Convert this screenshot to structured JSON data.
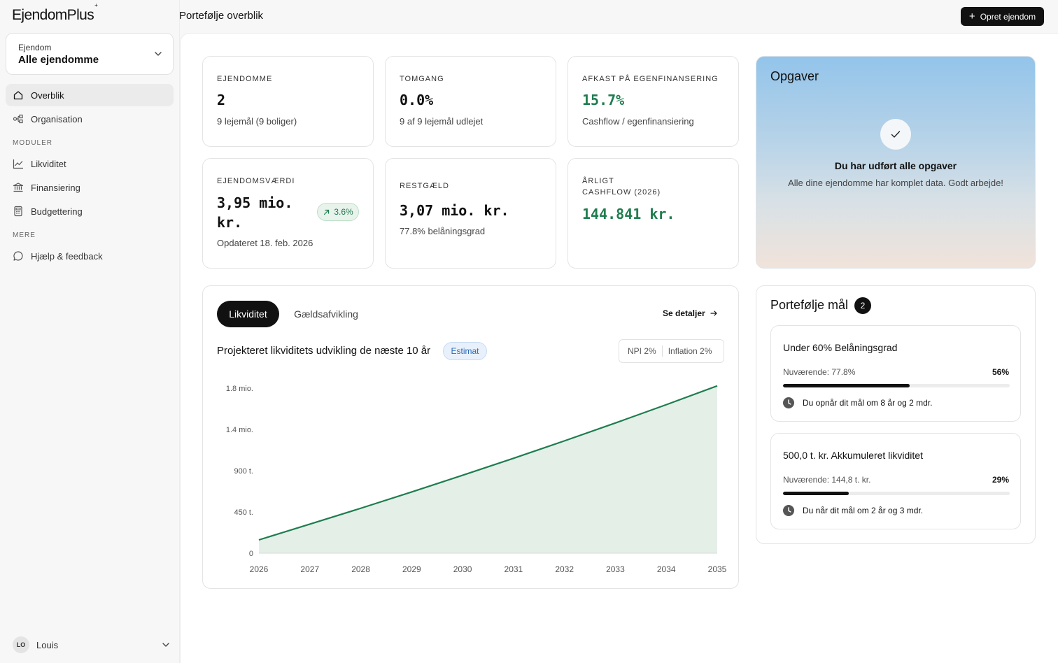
{
  "app": {
    "name": "EjendomPlus"
  },
  "sidebar": {
    "selector": {
      "label": "Ejendom",
      "value": "Alle ejendomme"
    },
    "items": [
      {
        "label": "Overblik",
        "icon": "home-icon"
      },
      {
        "label": "Organisation",
        "icon": "org-icon"
      }
    ],
    "section_moduler": "MODULER",
    "moduler": [
      {
        "label": "Likviditet",
        "icon": "line-chart-icon"
      },
      {
        "label": "Finansiering",
        "icon": "bank-icon"
      },
      {
        "label": "Budgettering",
        "icon": "calculator-icon"
      }
    ],
    "section_mere": "MERE",
    "mere": [
      {
        "label": "Hjælp & feedback",
        "icon": "chat-icon"
      }
    ],
    "user": {
      "initials": "LO",
      "name": "Louis"
    }
  },
  "header": {
    "title": "Portefølje overblik",
    "create_button": "Opret ejendom"
  },
  "kpis": {
    "ejendomme": {
      "label": "EJENDOMME",
      "value": "2",
      "sub": "9 lejemål (9 boliger)"
    },
    "tomgang": {
      "label": "TOMGANG",
      "value": "0.0%",
      "sub": "9 af 9 lejemål udlejet"
    },
    "afkast": {
      "label": "AFKAST PÅ EGENFINANSERING",
      "value": "15.7%",
      "sub": "Cashflow / egenfinansiering"
    },
    "vaerdi": {
      "label": "EJENDOMSVÆRDI",
      "value_line1": "3,95 mio.",
      "value_line2": "kr.",
      "badge": "3.6%",
      "sub": "Opdateret 18. feb. 2026"
    },
    "restgaeld": {
      "label": "RESTGÆLD",
      "value": "3,07 mio. kr.",
      "sub": "77.8% belåningsgrad"
    },
    "cashflow": {
      "label_line1": "ÅRLIGT",
      "label_line2": "CASHFLOW (2026)",
      "value": "144.841 kr."
    }
  },
  "tasks": {
    "title": "Opgaver",
    "headline": "Du har udført alle opgaver",
    "subtitle": "Alle dine ejendomme har komplet data. Godt arbejde!"
  },
  "chart_panel": {
    "tabs": [
      "Likviditet",
      "Gældsafvikling"
    ],
    "details_link": "Se detaljer",
    "title": "Projekteret likviditets udvikling de næste 10 år",
    "badge": "Estimat",
    "params": [
      "NPI 2%",
      "Inflation 2%"
    ]
  },
  "chart_data": {
    "type": "area",
    "x": [
      "2026",
      "2027",
      "2028",
      "2029",
      "2030",
      "2031",
      "2032",
      "2033",
      "2034",
      "2035"
    ],
    "series": [
      {
        "values": [
          145000,
          317000,
          490000,
          668000,
          850000,
          1035000,
          1225000,
          1420000,
          1620000,
          1825000
        ]
      }
    ],
    "yticks": [
      {
        "value": 0,
        "label": "0"
      },
      {
        "value": 450000,
        "label": "450 t."
      },
      {
        "value": 900000,
        "label": "900 t."
      },
      {
        "value": 1350000,
        "label": "1.4 mio."
      },
      {
        "value": 1800000,
        "label": "1.8 mio."
      }
    ],
    "ylim": [
      0,
      1800000
    ],
    "grid": false,
    "line_color": "#1e7d4e",
    "fill_color": "#e4efe8"
  },
  "goals": {
    "title": "Portefølje mål",
    "count": "2",
    "items": [
      {
        "title": "Under 60% Belåningsgrad",
        "current": "Nuværende: 77.8%",
        "pct_label": "56%",
        "progress": 0.56,
        "eta": "Du opnår dit mål om 8 år og 2 mdr."
      },
      {
        "title": "500,0 t. kr. Akkumuleret likviditet",
        "current": "Nuværende: 144,8 t. kr.",
        "pct_label": "29%",
        "progress": 0.29,
        "eta": "Du når dit mål om 2 år og 3 mdr."
      }
    ]
  },
  "colors": {
    "accent_green": "#1e7d4e",
    "primary": "#111111"
  }
}
